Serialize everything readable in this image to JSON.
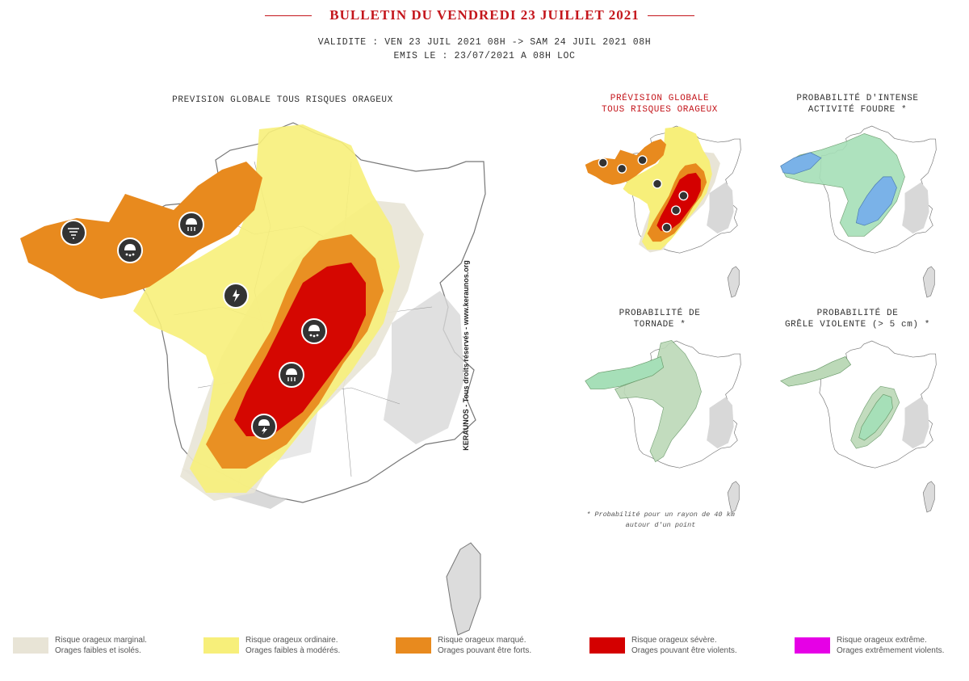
{
  "header": {
    "title": "BULLETIN DU VENDREDI 23 JUILLET 2021",
    "validity": "VALIDITE : VEN 23 JUIL 2021 08H -> SAM 24 JUIL 2021 08H",
    "issued": "EMIS LE : 23/07/2021 A 08H LOC"
  },
  "main_map": {
    "caption": "PREVISION GLOBALE TOUS RISQUES ORAGEUX",
    "watermark": "KERAUNOS - Tous droits réservés - www.keraunos.org",
    "icons": [
      "tornado-icon",
      "hail-icon",
      "rain-cloud-icon",
      "lightning-icon",
      "hail-icon",
      "rain-cloud-icon",
      "lightning-cloud-icon"
    ]
  },
  "mini_maps": [
    {
      "caption_line1": "PRÉVISION GLOBALE",
      "caption_line2": "TOUS RISQUES ORAGEUX",
      "highlight": true
    },
    {
      "caption_line1": "PROBABILITÉ D'INTENSE",
      "caption_line2": "ACTIVITÉ FOUDRE *",
      "highlight": false
    },
    {
      "caption_line1": "PROBABILITÉ DE",
      "caption_line2": "TORNADE *",
      "highlight": false
    },
    {
      "caption_line1": "PROBABILITÉ DE",
      "caption_line2": "GRÊLE VIOLENTE (> 5 cm) *",
      "highlight": false
    }
  ],
  "footnote": {
    "line1": "* Probabilité pour un rayon de 40 km",
    "line2": "autour d'un point"
  },
  "legend": [
    {
      "color": "#e8e4d6",
      "line1": "Risque orageux marginal.",
      "line2": "Orages faibles et isolés."
    },
    {
      "color": "#f7ef7a",
      "line1": "Risque orageux ordinaire.",
      "line2": "Orages faibles à modérés."
    },
    {
      "color": "#e88a1e",
      "line1": "Risque orageux marqué.",
      "line2": "Orages pouvant être forts."
    },
    {
      "color": "#d40000",
      "line1": "Risque orageux sévère.",
      "line2": "Orages pouvant être violents."
    },
    {
      "color": "#e600e6",
      "line1": "Risque orageux extrême.",
      "line2": "Orages extrêmement violents."
    }
  ],
  "colors": {
    "title_red": "#c4161c",
    "probability_green": "#a6dfb8",
    "probability_blue": "#7ab2e8"
  }
}
